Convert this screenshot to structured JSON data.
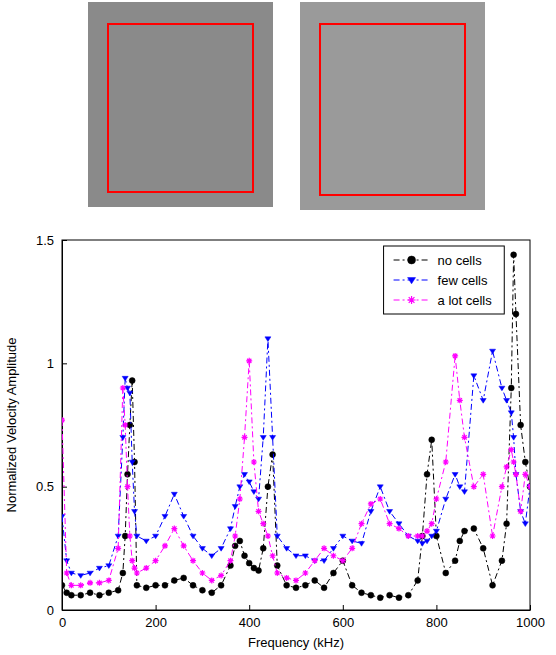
{
  "chart_data": {
    "type": "line",
    "x_label": "Frequency (kHz)",
    "y_label": "Normalized Velocity Amplitude",
    "xlim": [
      0,
      1000
    ],
    "xticks": [
      0,
      200,
      400,
      600,
      800,
      1000
    ],
    "ylim": [
      0,
      1.5
    ],
    "yticks": [
      0,
      0.5,
      1,
      1.5
    ],
    "grid": false,
    "legend": "upper right",
    "x": [
      0,
      10,
      20,
      40,
      60,
      80,
      100,
      120,
      130,
      135,
      140,
      145,
      150,
      155,
      160,
      180,
      200,
      220,
      240,
      260,
      280,
      300,
      320,
      340,
      360,
      370,
      380,
      390,
      400,
      410,
      420,
      430,
      440,
      450,
      460,
      480,
      500,
      520,
      540,
      560,
      580,
      600,
      620,
      640,
      660,
      680,
      700,
      720,
      740,
      760,
      770,
      780,
      790,
      800,
      820,
      840,
      850,
      860,
      880,
      900,
      920,
      940,
      950,
      960,
      965,
      970,
      980,
      990,
      1000
    ],
    "series": [
      {
        "name": "no cells",
        "color": "#000000",
        "marker": "circle",
        "line_style": "dash-dot",
        "values": [
          0.1,
          0.07,
          0.06,
          0.06,
          0.07,
          0.06,
          0.07,
          0.08,
          0.15,
          0.3,
          0.55,
          0.75,
          0.93,
          0.6,
          0.1,
          0.09,
          0.1,
          0.1,
          0.12,
          0.13,
          0.1,
          0.08,
          0.07,
          0.1,
          0.18,
          0.26,
          0.28,
          0.22,
          0.19,
          0.17,
          0.16,
          0.25,
          0.5,
          0.63,
          0.18,
          0.1,
          0.09,
          0.1,
          0.12,
          0.09,
          0.15,
          0.2,
          0.1,
          0.07,
          0.06,
          0.05,
          0.06,
          0.05,
          0.06,
          0.12,
          0.3,
          0.55,
          0.69,
          0.3,
          0.15,
          0.2,
          0.28,
          0.32,
          0.33,
          0.25,
          0.1,
          0.2,
          0.35,
          0.9,
          1.44,
          1.2,
          0.75,
          0.6,
          0.5
        ]
      },
      {
        "name": "few cells",
        "color": "#0000ff",
        "marker": "triangle-down",
        "line_style": "dash-dot",
        "values": [
          0.38,
          0.2,
          0.15,
          0.14,
          0.15,
          0.17,
          0.18,
          0.3,
          0.7,
          0.94,
          0.9,
          0.88,
          0.6,
          0.4,
          0.3,
          0.28,
          0.3,
          0.38,
          0.47,
          0.38,
          0.3,
          0.25,
          0.22,
          0.25,
          0.33,
          0.42,
          0.5,
          0.55,
          0.52,
          0.48,
          0.45,
          0.7,
          1.1,
          0.7,
          0.3,
          0.25,
          0.22,
          0.22,
          0.2,
          0.2,
          0.25,
          0.3,
          0.28,
          0.27,
          0.4,
          0.5,
          0.4,
          0.35,
          0.3,
          0.28,
          0.27,
          0.28,
          0.3,
          0.32,
          0.45,
          0.55,
          0.5,
          0.48,
          0.95,
          0.85,
          1.05,
          0.9,
          0.85,
          0.8,
          0.7,
          0.55,
          0.4,
          0.35,
          0.5
        ]
      },
      {
        "name": "a lot cells",
        "color": "#ff00ff",
        "marker": "star",
        "line_style": "dash-dot",
        "values": [
          0.77,
          0.15,
          0.1,
          0.1,
          0.11,
          0.11,
          0.12,
          0.25,
          0.9,
          0.75,
          0.5,
          0.3,
          0.2,
          0.17,
          0.15,
          0.17,
          0.2,
          0.26,
          0.33,
          0.26,
          0.2,
          0.15,
          0.12,
          0.14,
          0.2,
          0.3,
          0.45,
          0.7,
          1.01,
          0.6,
          0.4,
          0.35,
          0.3,
          0.22,
          0.15,
          0.13,
          0.12,
          0.15,
          0.2,
          0.25,
          0.22,
          0.2,
          0.25,
          0.35,
          0.43,
          0.45,
          0.35,
          0.33,
          0.3,
          0.3,
          0.3,
          0.32,
          0.35,
          0.45,
          0.6,
          1.03,
          0.85,
          0.7,
          0.5,
          0.55,
          0.3,
          0.5,
          0.58,
          0.65,
          0.6,
          0.55,
          0.4,
          0.55,
          0.5
        ]
      }
    ]
  }
}
